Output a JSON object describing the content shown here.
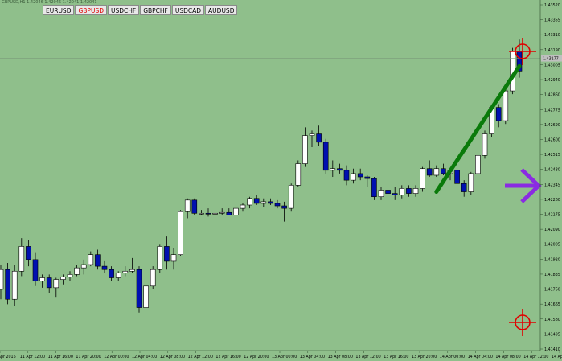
{
  "header": {
    "info_text": "GBPUSD,H1 1.42046 1.42046 1.42041 1.42041"
  },
  "tabs": [
    {
      "label": "EURUSD",
      "active": false
    },
    {
      "label": "GBPUSD",
      "active": true
    },
    {
      "label": "USDCHF",
      "active": false
    },
    {
      "label": "GBPCHF",
      "active": false
    },
    {
      "label": "USDCAD",
      "active": false
    },
    {
      "label": "AUDUSD",
      "active": false
    }
  ],
  "current_price_label": "1.43177",
  "colors": {
    "background": "#8fbf8b",
    "bull_body": "#ffffff",
    "bear_body": "#0010b0",
    "wick": "#000000",
    "trendline": "#0a7a0a",
    "crosshair": "#e00000",
    "arrow": "#8a2be2"
  },
  "icons": {
    "arrow": "right-arrow-icon",
    "crosshair": "crosshair-target-icon"
  },
  "chart_data": {
    "type": "candlestick",
    "price_axis": {
      "ylim": [
        1.4141,
        1.4352
      ],
      "tick_labels": [
        "1.43520",
        "1.43355",
        "1.43310",
        "1.43190",
        "1.43005",
        "1.42940",
        "1.42860",
        "1.42775",
        "1.42690",
        "1.42600",
        "1.42515",
        "1.42430",
        "1.42345",
        "1.42260",
        "1.42175",
        "1.42090",
        "1.42005",
        "1.41920",
        "1.41835",
        "1.41750",
        "1.41665",
        "1.41580",
        "1.41495",
        "1.41410"
      ]
    },
    "time_axis": {
      "tick_labels": [
        "11 Apr 2016",
        "11 Apr 12:00",
        "11 Apr 16:00",
        "11 Apr 20:00",
        "12 Apr 00:00",
        "12 Apr 04:00",
        "12 Apr 08:00",
        "12 Apr 12:00",
        "12 Apr 16:00",
        "12 Apr 20:00",
        "13 Apr 00:00",
        "13 Apr 04:00",
        "13 Apr 08:00",
        "13 Apr 12:00",
        "13 Apr 16:00",
        "13 Apr 20:00",
        "14 Apr 00:00",
        "14 Apr 04:00",
        "14 Apr 08:00",
        "14 Apr 12:00",
        "14 Apr 16:00"
      ]
    },
    "candles": [
      {
        "o": 1.4178,
        "h": 1.4193,
        "l": 1.4172,
        "c": 1.419
      },
      {
        "o": 1.419,
        "h": 1.4194,
        "l": 1.4169,
        "c": 1.4172
      },
      {
        "o": 1.4172,
        "h": 1.4193,
        "l": 1.4168,
        "c": 1.4189
      },
      {
        "o": 1.4189,
        "h": 1.4209,
        "l": 1.4186,
        "c": 1.4204
      },
      {
        "o": 1.4204,
        "h": 1.4208,
        "l": 1.4192,
        "c": 1.4196
      },
      {
        "o": 1.4196,
        "h": 1.42,
        "l": 1.418,
        "c": 1.4183
      },
      {
        "o": 1.4183,
        "h": 1.4187,
        "l": 1.4179,
        "c": 1.4185
      },
      {
        "o": 1.4185,
        "h": 1.4187,
        "l": 1.4176,
        "c": 1.4179
      },
      {
        "o": 1.4179,
        "h": 1.4185,
        "l": 1.4173,
        "c": 1.4184
      },
      {
        "o": 1.4184,
        "h": 1.4187,
        "l": 1.4181,
        "c": 1.41855
      },
      {
        "o": 1.41855,
        "h": 1.4189,
        "l": 1.4183,
        "c": 1.4187
      },
      {
        "o": 1.4187,
        "h": 1.4193,
        "l": 1.4186,
        "c": 1.4191
      },
      {
        "o": 1.4191,
        "h": 1.4196,
        "l": 1.4187,
        "c": 1.4193
      },
      {
        "o": 1.4193,
        "h": 1.4201,
        "l": 1.4192,
        "c": 1.4199
      },
      {
        "o": 1.4199,
        "h": 1.4202,
        "l": 1.419,
        "c": 1.4192
      },
      {
        "o": 1.4192,
        "h": 1.4195,
        "l": 1.4188,
        "c": 1.419
      },
      {
        "o": 1.419,
        "h": 1.4192,
        "l": 1.4183,
        "c": 1.4185
      },
      {
        "o": 1.4185,
        "h": 1.4189,
        "l": 1.4183,
        "c": 1.4188
      },
      {
        "o": 1.4188,
        "h": 1.4192,
        "l": 1.4186,
        "c": 1.4189
      },
      {
        "o": 1.4189,
        "h": 1.4197,
        "l": 1.4188,
        "c": 1.419
      },
      {
        "o": 1.419,
        "h": 1.4192,
        "l": 1.4164,
        "c": 1.4167
      },
      {
        "o": 1.4167,
        "h": 1.4182,
        "l": 1.4161,
        "c": 1.418
      },
      {
        "o": 1.418,
        "h": 1.4192,
        "l": 1.4178,
        "c": 1.419
      },
      {
        "o": 1.419,
        "h": 1.4205,
        "l": 1.4188,
        "c": 1.4204
      },
      {
        "o": 1.4204,
        "h": 1.421,
        "l": 1.419,
        "c": 1.4195
      },
      {
        "o": 1.4195,
        "h": 1.4203,
        "l": 1.419,
        "c": 1.4199
      },
      {
        "o": 1.4199,
        "h": 1.4226,
        "l": 1.4198,
        "c": 1.4225
      },
      {
        "o": 1.4225,
        "h": 1.4233,
        "l": 1.4221,
        "c": 1.4232
      },
      {
        "o": 1.4232,
        "h": 1.4233,
        "l": 1.4223,
        "c": 1.4224
      },
      {
        "o": 1.4224,
        "h": 1.4226,
        "l": 1.4223,
        "c": 1.4224
      },
      {
        "o": 1.4224,
        "h": 1.4227,
        "l": 1.4222,
        "c": 1.42235
      },
      {
        "o": 1.42235,
        "h": 1.4226,
        "l": 1.4222,
        "c": 1.4224
      },
      {
        "o": 1.4224,
        "h": 1.4227,
        "l": 1.4223,
        "c": 1.42245
      },
      {
        "o": 1.42245,
        "h": 1.4227,
        "l": 1.4223,
        "c": 1.4223
      },
      {
        "o": 1.4223,
        "h": 1.4228,
        "l": 1.4222,
        "c": 1.4227
      },
      {
        "o": 1.4227,
        "h": 1.423,
        "l": 1.4225,
        "c": 1.4229
      },
      {
        "o": 1.4229,
        "h": 1.4234,
        "l": 1.4227,
        "c": 1.4233
      },
      {
        "o": 1.4233,
        "h": 1.4235,
        "l": 1.4229,
        "c": 1.423
      },
      {
        "o": 1.423,
        "h": 1.4233,
        "l": 1.4228,
        "c": 1.4231
      },
      {
        "o": 1.4231,
        "h": 1.4233,
        "l": 1.4229,
        "c": 1.423
      },
      {
        "o": 1.423,
        "h": 1.4232,
        "l": 1.4227,
        "c": 1.42285
      },
      {
        "o": 1.42285,
        "h": 1.4231,
        "l": 1.4219,
        "c": 1.4227
      },
      {
        "o": 1.4227,
        "h": 1.4242,
        "l": 1.4225,
        "c": 1.4241
      },
      {
        "o": 1.4241,
        "h": 1.4256,
        "l": 1.424,
        "c": 1.4254
      },
      {
        "o": 1.4254,
        "h": 1.4276,
        "l": 1.4252,
        "c": 1.4271
      },
      {
        "o": 1.4271,
        "h": 1.4274,
        "l": 1.4264,
        "c": 1.4272
      },
      {
        "o": 1.4272,
        "h": 1.4277,
        "l": 1.4265,
        "c": 1.4267
      },
      {
        "o": 1.4267,
        "h": 1.4269,
        "l": 1.4248,
        "c": 1.425
      },
      {
        "o": 1.425,
        "h": 1.4256,
        "l": 1.4246,
        "c": 1.4251
      },
      {
        "o": 1.4251,
        "h": 1.4254,
        "l": 1.4248,
        "c": 1.425
      },
      {
        "o": 1.425,
        "h": 1.4253,
        "l": 1.4241,
        "c": 1.4244
      },
      {
        "o": 1.4244,
        "h": 1.4251,
        "l": 1.4242,
        "c": 1.4248
      },
      {
        "o": 1.4248,
        "h": 1.4251,
        "l": 1.4244,
        "c": 1.4246
      },
      {
        "o": 1.4246,
        "h": 1.4247,
        "l": 1.424,
        "c": 1.4245
      },
      {
        "o": 1.4245,
        "h": 1.4246,
        "l": 1.4232,
        "c": 1.4234
      },
      {
        "o": 1.4234,
        "h": 1.424,
        "l": 1.4232,
        "c": 1.4238
      },
      {
        "o": 1.4238,
        "h": 1.4242,
        "l": 1.4233,
        "c": 1.4236
      },
      {
        "o": 1.4236,
        "h": 1.424,
        "l": 1.4232,
        "c": 1.4235
      },
      {
        "o": 1.4235,
        "h": 1.4241,
        "l": 1.4233,
        "c": 1.4239
      },
      {
        "o": 1.4239,
        "h": 1.4241,
        "l": 1.4234,
        "c": 1.4236
      },
      {
        "o": 1.4236,
        "h": 1.4241,
        "l": 1.4234,
        "c": 1.4239
      },
      {
        "o": 1.4239,
        "h": 1.4252,
        "l": 1.4237,
        "c": 1.4251
      },
      {
        "o": 1.4251,
        "h": 1.4256,
        "l": 1.4246,
        "c": 1.4247
      },
      {
        "o": 1.4247,
        "h": 1.4253,
        "l": 1.4246,
        "c": 1.4251
      },
      {
        "o": 1.4251,
        "h": 1.4254,
        "l": 1.4247,
        "c": 1.4248
      },
      {
        "o": 1.4248,
        "h": 1.4251,
        "l": 1.4244,
        "c": 1.425
      },
      {
        "o": 1.425,
        "h": 1.4253,
        "l": 1.4238,
        "c": 1.4242
      },
      {
        "o": 1.4242,
        "h": 1.4244,
        "l": 1.4234,
        "c": 1.4237
      },
      {
        "o": 1.4237,
        "h": 1.4249,
        "l": 1.4235,
        "c": 1.4248
      },
      {
        "o": 1.4248,
        "h": 1.4261,
        "l": 1.4246,
        "c": 1.4259
      },
      {
        "o": 1.4259,
        "h": 1.4274,
        "l": 1.4257,
        "c": 1.4272
      },
      {
        "o": 1.4272,
        "h": 1.4289,
        "l": 1.427,
        "c": 1.4288
      },
      {
        "o": 1.4288,
        "h": 1.429,
        "l": 1.4276,
        "c": 1.428
      },
      {
        "o": 1.428,
        "h": 1.43,
        "l": 1.4278,
        "c": 1.4298
      },
      {
        "o": 1.4298,
        "h": 1.4324,
        "l": 1.4296,
        "c": 1.4322
      },
      {
        "o": 1.4322,
        "h": 1.4329,
        "l": 1.4306,
        "c": 1.431
      }
    ],
    "trendline": {
      "from": {
        "index": 63,
        "price": 1.4237
      },
      "to": {
        "index": 75,
        "price": 1.4313
      }
    },
    "current_price": 1.43177
  }
}
